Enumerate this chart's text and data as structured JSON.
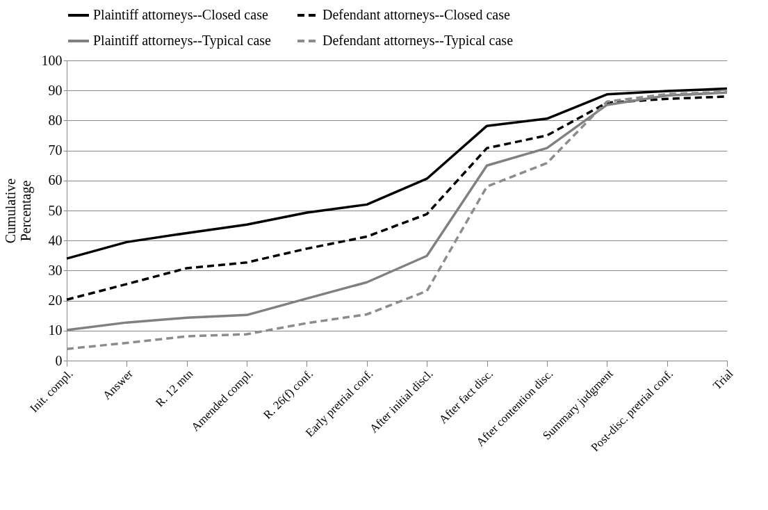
{
  "chart_data": {
    "type": "line",
    "ylabel": "Cumulative Percentage",
    "categories": [
      "Init. compl.",
      "Answer",
      "R. 12 mtn",
      "Amended compl.",
      "R. 26(f) conf.",
      "Early pretrial conf.",
      "After initial discl.",
      "After fact disc.",
      "After contention disc.",
      "Summary judgment",
      "Post-disc. pretrial conf.",
      "Trial"
    ],
    "series": [
      {
        "name": "Plaintiff attorneys--Closed case",
        "color": "#000000",
        "line_style": "solid",
        "values": [
          34,
          39.5,
          42.5,
          45.3,
          49.3,
          52,
          60.6,
          78.2,
          80.6,
          88.7,
          89.8,
          90.6
        ]
      },
      {
        "name": "Defendant attorneys--Closed case",
        "color": "#000000",
        "line_style": "dashed",
        "values": [
          20.3,
          25.5,
          30.8,
          32.7,
          37.3,
          41.3,
          48.8,
          70.8,
          75,
          85.9,
          87.2,
          88
        ]
      },
      {
        "name": "Plaintiff attorneys--Typical case",
        "color": "#808080",
        "line_style": "solid",
        "values": [
          10.2,
          12.7,
          14.3,
          15.2,
          20.7,
          26.1,
          34.9,
          65,
          70.8,
          85.2,
          88.3,
          89.3
        ]
      },
      {
        "name": "Defendant attorneys--Typical case",
        "color": "#8c8c8c",
        "line_style": "dashed",
        "values": [
          3.9,
          5.9,
          8.1,
          8.8,
          12.5,
          15.4,
          23.2,
          58,
          65.8,
          86.3,
          88.8,
          89.5
        ]
      }
    ],
    "ylim": [
      0,
      100
    ],
    "yticks": [
      0,
      10,
      20,
      30,
      40,
      50,
      60,
      70,
      80,
      90,
      100
    ],
    "grid": "y",
    "legend": "top",
    "marker": "none"
  }
}
